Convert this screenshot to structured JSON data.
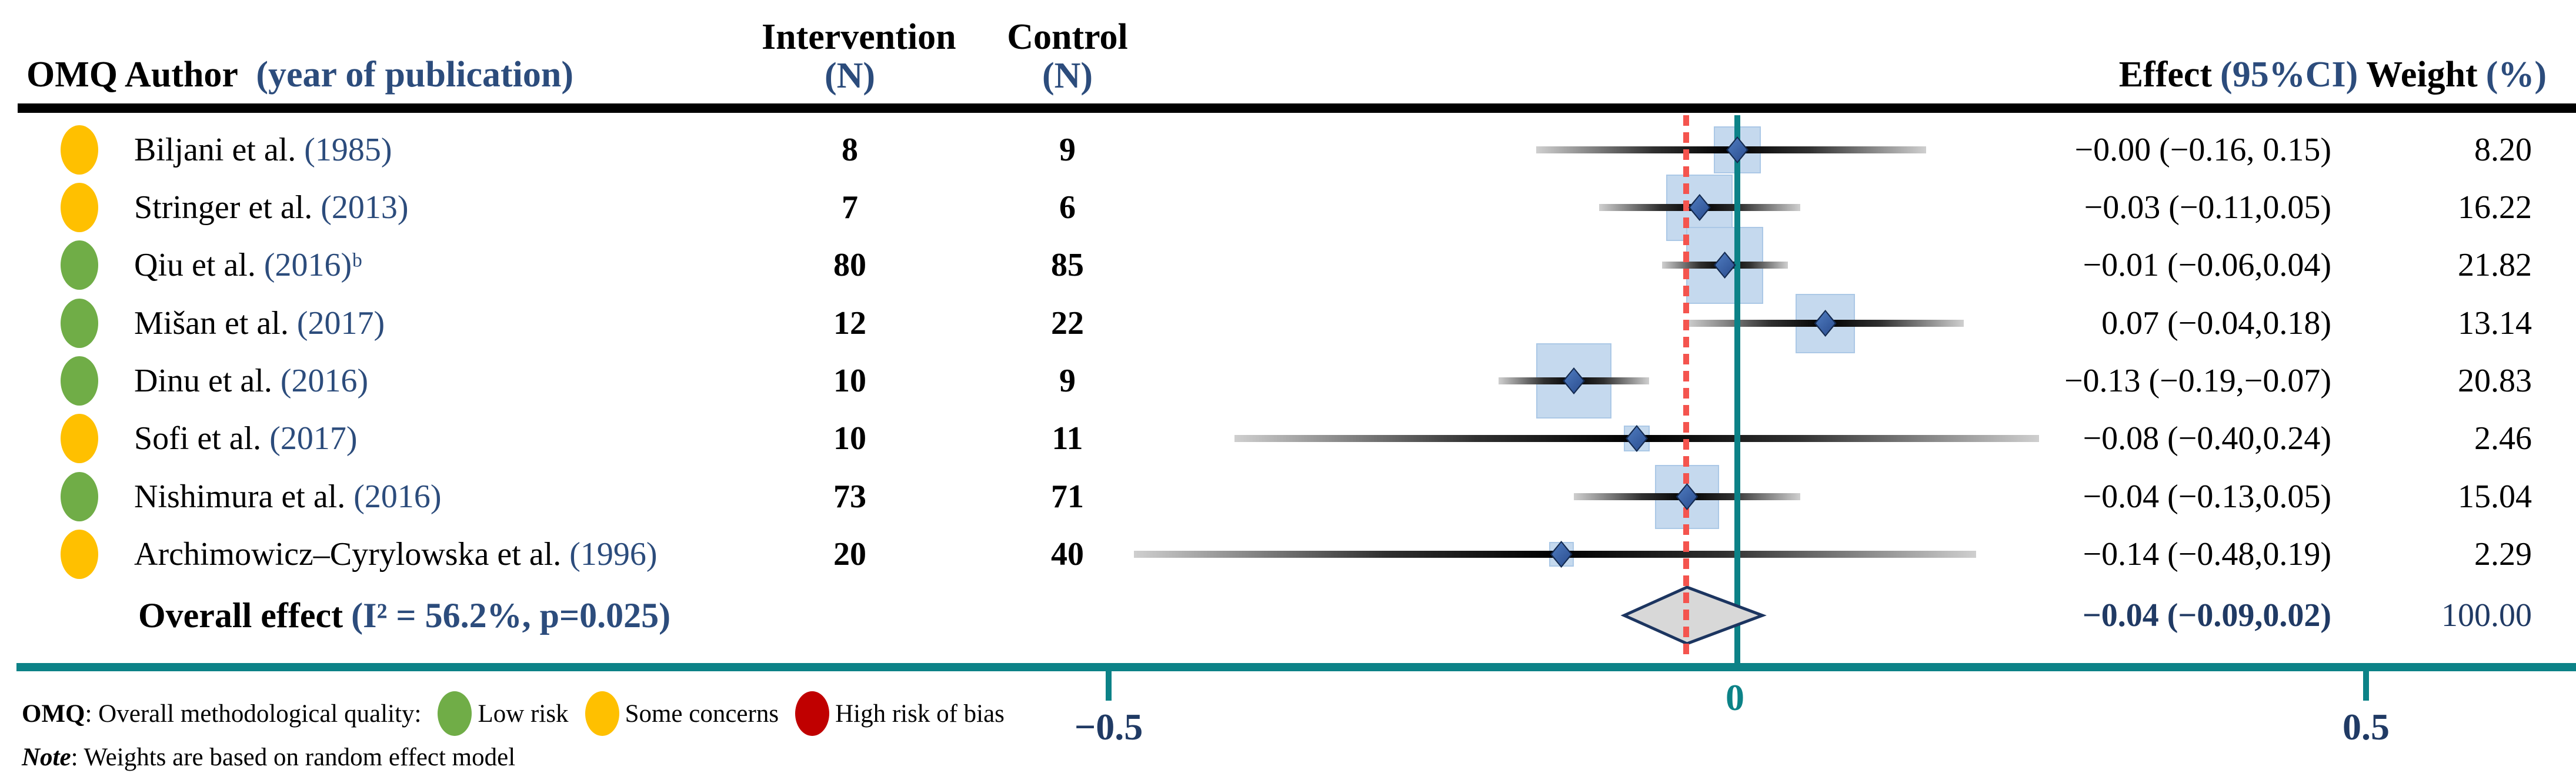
{
  "header": {
    "author_black": "OMQ Author",
    "author_blue": "(year of publication)",
    "intervention": "Intervention",
    "intervention_n": "(N)",
    "control": "Control",
    "control_n": "(N)",
    "effect_black": "Effect",
    "effect_blue": "(95%CI)",
    "weight_black": "Weight",
    "weight_blue": "(%)"
  },
  "chart_data": {
    "type": "forest",
    "x_axis": {
      "ticks": [
        -0.5,
        0,
        0.5
      ],
      "tick_labels": [
        "−0.5",
        "0",
        "0.5"
      ],
      "range": [
        -0.52,
        0.66
      ],
      "zero_line": 0,
      "overall_reference_line": -0.04,
      "grid": false
    },
    "studies": [
      {
        "omq": "some_concerns",
        "author": "Biljani et al.",
        "year": "(1985)",
        "intervention_n": "8",
        "control_n": "9",
        "effect": -0.0,
        "ci_low": -0.16,
        "ci_high": 0.15,
        "effect_label": "−0.00 (−0.16, 0.15)",
        "weight": 8.2,
        "weight_label": "8.20"
      },
      {
        "omq": "some_concerns",
        "author": "Stringer et al.",
        "year": "(2013)",
        "intervention_n": "7",
        "control_n": "6",
        "effect": -0.03,
        "ci_low": -0.11,
        "ci_high": 0.05,
        "effect_label": "−0.03 (−0.11,0.05)",
        "weight": 16.22,
        "weight_label": "16.22"
      },
      {
        "omq": "low_risk",
        "author": "Qiu et al.",
        "year": "(2016)ᵇ",
        "intervention_n": "80",
        "control_n": "85",
        "effect": -0.01,
        "ci_low": -0.06,
        "ci_high": 0.04,
        "effect_label": "−0.01 (−0.06,0.04)",
        "weight": 21.82,
        "weight_label": "21.82"
      },
      {
        "omq": "low_risk",
        "author": "Mišan et al.",
        "year": "(2017)",
        "intervention_n": "12",
        "control_n": "22",
        "effect": 0.07,
        "ci_low": -0.04,
        "ci_high": 0.18,
        "effect_label": "0.07 (−0.04,0.18)",
        "weight": 13.14,
        "weight_label": "13.14"
      },
      {
        "omq": "low_risk",
        "author": "Dinu et al.",
        "year": "(2016)",
        "intervention_n": "10",
        "control_n": "9",
        "effect": -0.13,
        "ci_low": -0.19,
        "ci_high": -0.07,
        "effect_label": "−0.13 (−0.19,−0.07)",
        "weight": 20.83,
        "weight_label": "20.83"
      },
      {
        "omq": "some_concerns",
        "author": "Sofi et al.",
        "year": "(2017)",
        "intervention_n": "10",
        "control_n": "11",
        "effect": -0.08,
        "ci_low": -0.4,
        "ci_high": 0.24,
        "effect_label": "−0.08 (−0.40,0.24)",
        "weight": 2.46,
        "weight_label": "2.46"
      },
      {
        "omq": "low_risk",
        "author": "Nishimura et al.",
        "year": "(2016)",
        "intervention_n": "73",
        "control_n": "71",
        "effect": -0.04,
        "ci_low": -0.13,
        "ci_high": 0.05,
        "effect_label": "−0.04 (−0.13,0.05)",
        "weight": 15.04,
        "weight_label": "15.04"
      },
      {
        "omq": "some_concerns",
        "author": "Archimowicz–Cyrylowska et al.",
        "year": "(1996)",
        "intervention_n": "20",
        "control_n": "40",
        "effect": -0.14,
        "ci_low": -0.48,
        "ci_high": 0.19,
        "effect_label": "−0.14 (−0.48,0.19)",
        "weight": 2.29,
        "weight_label": "2.29"
      }
    ],
    "overall": {
      "label": "Overall effect",
      "stats": "(I² = 56.2%, p=0.025)",
      "effect": -0.04,
      "ci_low": -0.09,
      "ci_high": 0.02,
      "effect_label": "−0.04 (−0.09,0.02)",
      "weight_label": "100.00"
    }
  },
  "legend": {
    "prefix_bold": "OMQ",
    "prefix_rest": ": Overall methodological quality:",
    "items": [
      {
        "key": "low_risk",
        "label": "Low risk"
      },
      {
        "key": "some_concerns",
        "label": "Some concerns"
      },
      {
        "key": "high_risk",
        "label": "High risk of bias"
      }
    ]
  },
  "note": {
    "label_italic": "Note",
    "text": ": Weights are based on random effect model"
  },
  "colors": {
    "teal": "#0c8287",
    "reference_red": "#f4544e",
    "header_blue": "#2c4c7c",
    "navy_dark": "#203a64",
    "square_fill": "#c5d9ee",
    "square_border": "#abc8e6",
    "diamond_fill": "#2f5597",
    "diamond_edge": "#13294e",
    "overall_fill": "#d8d8d8",
    "overall_edge": "#1c3560",
    "low_risk": "#70ad47",
    "some_concerns": "#ffc000",
    "high_risk": "#c00000"
  }
}
